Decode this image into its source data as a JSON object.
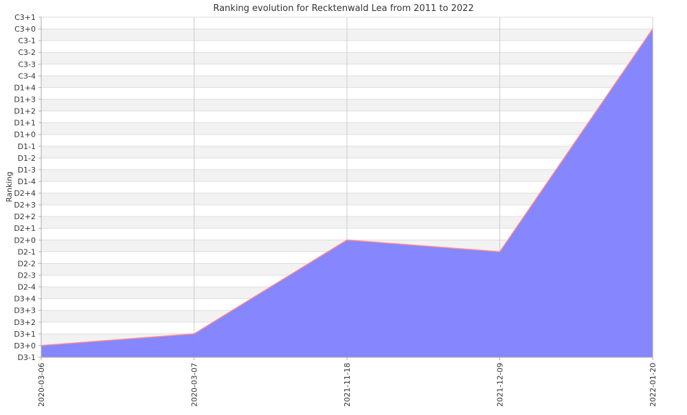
{
  "chart_data": {
    "type": "area",
    "title": "Ranking evolution for Recktenwald Lea from 2011 to 2022",
    "xlabel": "",
    "ylabel": "Ranking",
    "y_ticks": [
      "D3-1",
      "D3+0",
      "D3+1",
      "D3+2",
      "D3+3",
      "D3+4",
      "D2-4",
      "D2-3",
      "D2-2",
      "D2-1",
      "D2+0",
      "D2+1",
      "D2+2",
      "D2+3",
      "D2+4",
      "D1-4",
      "D1-3",
      "D1-2",
      "D1-1",
      "D1+0",
      "D1+1",
      "D1+2",
      "D1+3",
      "D1+4",
      "C3-4",
      "C3-3",
      "C3-2",
      "C3-1",
      "C3+0",
      "C3+1"
    ],
    "x": [
      "2020-03-06",
      "2020-03-07",
      "2021-11-18",
      "2021-12-09",
      "2022-01-20"
    ],
    "y": [
      "D3+0",
      "D3+1",
      "D2+0",
      "D2-1",
      "C3+0"
    ],
    "grid": true,
    "colors": {
      "fill": "#7f7fff",
      "line": "#ff8c8c",
      "band": "#f2f2f2",
      "grid_line": "#dddddd",
      "vgrid_line": "#cccccc",
      "axis": "#aaaaaa"
    }
  }
}
